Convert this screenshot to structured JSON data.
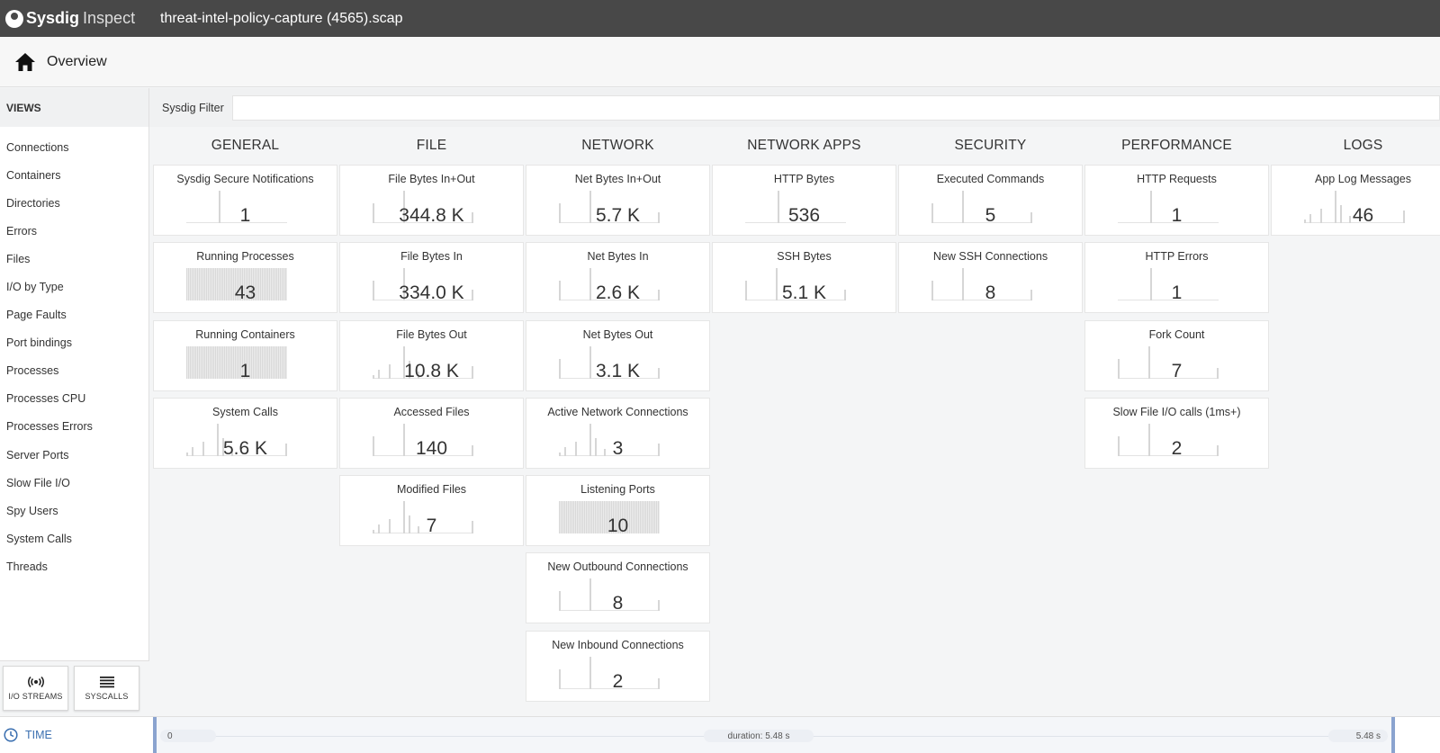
{
  "app": {
    "brand": "Sysdig",
    "product": "Inspect",
    "capture_title": "threat-intel-policy-capture (4565).scap"
  },
  "header": {
    "title": "Overview"
  },
  "sidebar": {
    "heading": "VIEWS",
    "items": [
      "Connections",
      "Containers",
      "Directories",
      "Errors",
      "Files",
      "I/O by Type",
      "Page Faults",
      "Port bindings",
      "Processes",
      "Processes CPU",
      "Processes Errors",
      "Server Ports",
      "Slow File I/O",
      "Spy Users",
      "System Calls",
      "Threads"
    ],
    "buttons": {
      "io_streams": "I/O STREAMS",
      "syscalls": "SYSCALLS"
    }
  },
  "filter": {
    "label": "Sysdig Filter",
    "value": "",
    "placeholder": ""
  },
  "columns": [
    {
      "title": "GENERAL",
      "tiles": [
        {
          "title": "Sysdig Secure Notifications",
          "value": "1",
          "spark": "spike"
        },
        {
          "title": "Running Processes",
          "value": "43",
          "spark": "fill"
        },
        {
          "title": "Running Containers",
          "value": "1",
          "spark": "fill"
        },
        {
          "title": "System Calls",
          "value": "5.6 K",
          "spark": "mixed"
        }
      ]
    },
    {
      "title": "FILE",
      "tiles": [
        {
          "title": "File Bytes In+Out",
          "value": "344.8 K",
          "spark": "edges"
        },
        {
          "title": "File Bytes In",
          "value": "334.0 K",
          "spark": "edges"
        },
        {
          "title": "File Bytes Out",
          "value": "10.8 K",
          "spark": "mixed"
        },
        {
          "title": "Accessed Files",
          "value": "140",
          "spark": "edges"
        },
        {
          "title": "Modified Files",
          "value": "7",
          "spark": "mixed"
        }
      ]
    },
    {
      "title": "NETWORK",
      "tiles": [
        {
          "title": "Net Bytes In+Out",
          "value": "5.7 K",
          "spark": "edges"
        },
        {
          "title": "Net Bytes In",
          "value": "2.6 K",
          "spark": "edges"
        },
        {
          "title": "Net Bytes Out",
          "value": "3.1 K",
          "spark": "edges"
        },
        {
          "title": "Active Network Connections",
          "value": "3",
          "spark": "mixed"
        },
        {
          "title": "Listening Ports",
          "value": "10",
          "spark": "fill"
        },
        {
          "title": "New Outbound Connections",
          "value": "8",
          "spark": "edges"
        },
        {
          "title": "New Inbound Connections",
          "value": "2",
          "spark": "edges"
        }
      ]
    },
    {
      "title": "NETWORK APPS",
      "tiles": [
        {
          "title": "HTTP Bytes",
          "value": "536",
          "spark": "spike"
        },
        {
          "title": "SSH Bytes",
          "value": "5.1 K",
          "spark": "edges"
        }
      ]
    },
    {
      "title": "SECURITY",
      "tiles": [
        {
          "title": "Executed Commands",
          "value": "5",
          "spark": "edges"
        },
        {
          "title": "New SSH Connections",
          "value": "8",
          "spark": "edges"
        }
      ]
    },
    {
      "title": "PERFORMANCE",
      "tiles": [
        {
          "title": "HTTP Requests",
          "value": "1",
          "spark": "spike"
        },
        {
          "title": "HTTP Errors",
          "value": "1",
          "spark": "spike"
        },
        {
          "title": "Fork Count",
          "value": "7",
          "spark": "edges"
        },
        {
          "title": "Slow File I/O calls (1ms+)",
          "value": "2",
          "spark": "edges"
        }
      ]
    },
    {
      "title": "LOGS",
      "tiles": [
        {
          "title": "App Log Messages",
          "value": "46",
          "spark": "mixed"
        }
      ]
    }
  ],
  "timeline": {
    "label": "TIME",
    "start": "0",
    "duration": "duration: 5.48 s",
    "end": "5.48 s"
  },
  "colors": {
    "topbar": "#484848",
    "accent": "#3a6fb0"
  }
}
